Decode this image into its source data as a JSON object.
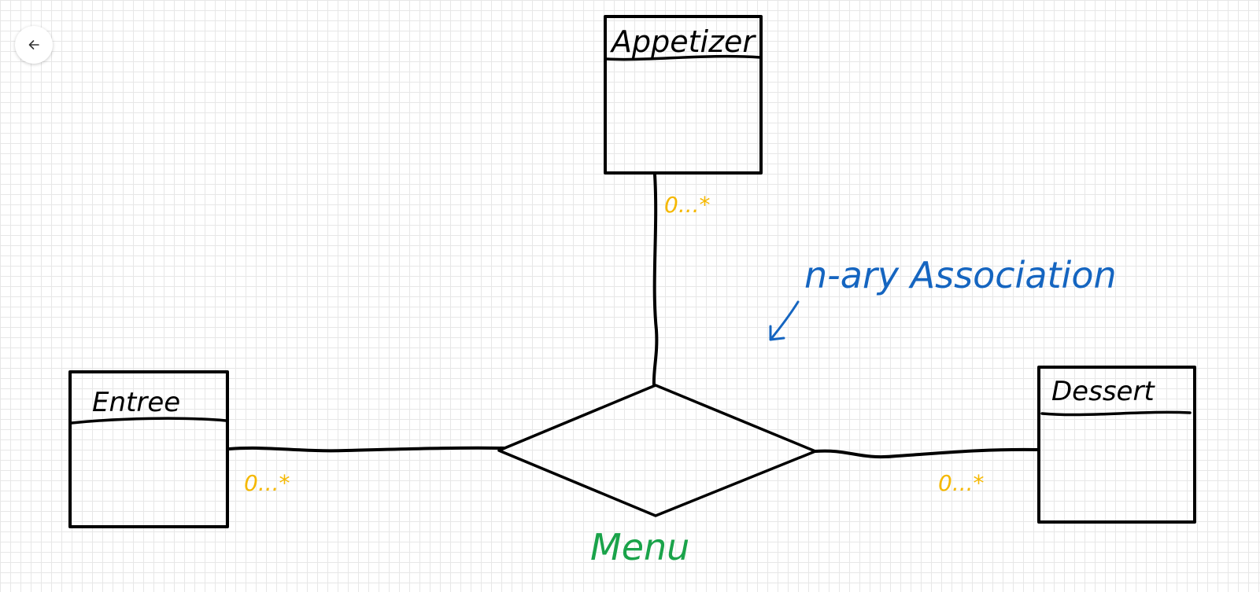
{
  "toolbar": {
    "back_icon": "arrow-left-icon"
  },
  "diagram": {
    "classes": [
      {
        "id": "appetizer",
        "name": "Appetizer"
      },
      {
        "id": "entree",
        "name": "Entree"
      },
      {
        "id": "dessert",
        "name": "Dessert"
      }
    ],
    "association": {
      "name": "Menu",
      "type": "n-ary"
    },
    "multiplicities": {
      "appetizer": "0...*",
      "entree": "0...*",
      "dessert": "0...*"
    },
    "annotation": "n-ary Association"
  },
  "colors": {
    "ink": "#000000",
    "multiplicity": "#f5b800",
    "association_name": "#1aa34a",
    "annotation": "#1565c0",
    "grid": "#e7e7e7"
  }
}
